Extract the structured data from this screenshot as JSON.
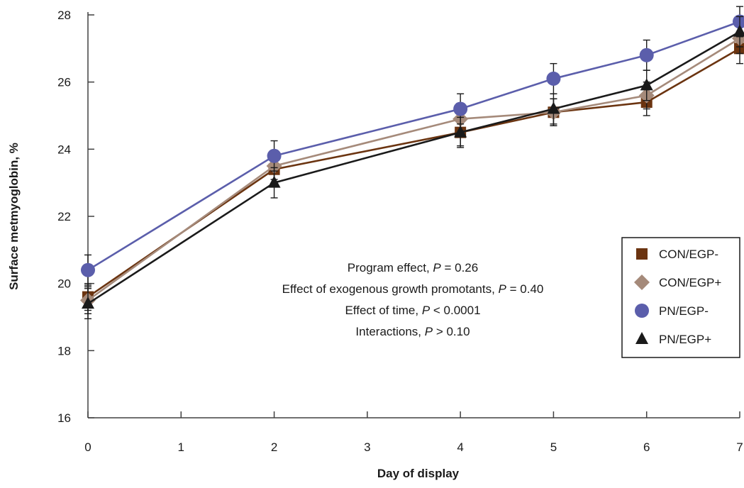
{
  "chart_data": {
    "type": "line",
    "xlabel": "Day of display",
    "ylabel": "Surface metmyoglobin, %",
    "ylim": [
      16,
      28
    ],
    "yticks": [
      16,
      18,
      20,
      22,
      24,
      26,
      28
    ],
    "xticks": [
      0,
      1,
      2,
      3,
      4,
      5,
      6,
      7
    ],
    "x": [
      0,
      2,
      4,
      5,
      6,
      7
    ],
    "series": [
      {
        "name": "CON/EGP-",
        "marker": "square",
        "color": "#6b3410",
        "values": [
          19.6,
          23.4,
          24.5,
          25.1,
          25.4,
          27.0
        ],
        "errors": [
          0.4,
          0.4,
          0.4,
          0.4,
          0.4,
          0.45
        ]
      },
      {
        "name": "CON/EGP+",
        "marker": "diamond",
        "color": "#a58a7a",
        "values": [
          19.5,
          23.5,
          24.9,
          25.1,
          25.6,
          27.3
        ],
        "errors": [
          0.4,
          0.4,
          0.4,
          0.4,
          0.4,
          0.45
        ]
      },
      {
        "name": "PN/EGP-",
        "marker": "circle",
        "color": "#5b5eab",
        "values": [
          20.4,
          23.8,
          25.2,
          26.1,
          26.8,
          27.8
        ],
        "errors": [
          0.45,
          0.45,
          0.45,
          0.45,
          0.45,
          0.45
        ]
      },
      {
        "name": "PN/EGP+",
        "marker": "triangle",
        "color": "#1a1a1a",
        "values": [
          19.4,
          23.0,
          24.5,
          25.2,
          25.9,
          27.5
        ],
        "errors": [
          0.45,
          0.45,
          0.45,
          0.45,
          0.45,
          0.45
        ]
      }
    ],
    "annotations": [
      {
        "prefix": "Program effect, ",
        "p": "P",
        "suffix": " = 0.26"
      },
      {
        "prefix": "Effect of exogenous growth promotants, ",
        "p": "P",
        "suffix": " = 0.40"
      },
      {
        "prefix": "Effect of time, ",
        "p": "P",
        "suffix": " < 0.0001"
      },
      {
        "prefix": "Interactions, ",
        "p": "P",
        "suffix": " > 0.10"
      }
    ],
    "legend_position": "right",
    "grid": false
  }
}
